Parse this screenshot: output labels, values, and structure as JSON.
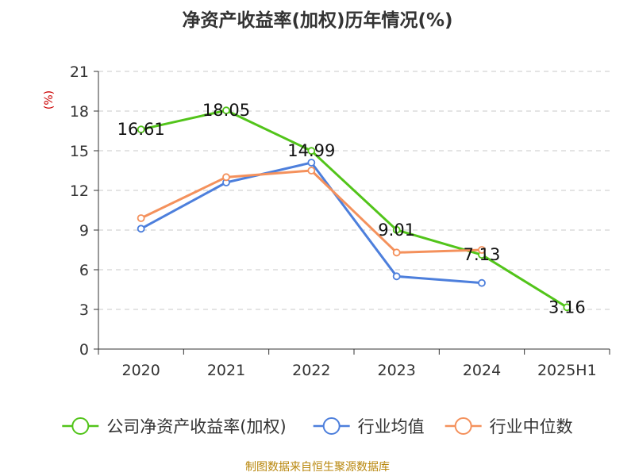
{
  "chart_data": {
    "type": "line",
    "title": "净资产收益率(加权)历年情况(%)",
    "ylabel": "(%)",
    "xlabel": "",
    "categories": [
      "2020",
      "2021",
      "2022",
      "2023",
      "2024",
      "2025H1"
    ],
    "ylim": [
      0,
      21
    ],
    "yticks": [
      0,
      3,
      6,
      9,
      12,
      15,
      18,
      21
    ],
    "grid": true,
    "legend_position": "bottom",
    "series": [
      {
        "name": "公司净资产收益率(加权)",
        "color": "#52c41a",
        "values": [
          16.61,
          18.05,
          14.99,
          9.01,
          7.13,
          3.16
        ],
        "labels": [
          "16.61",
          "18.05",
          "14.99",
          "9.01",
          "7.13",
          "3.16"
        ]
      },
      {
        "name": "行业均值",
        "color": "#4d7fdc",
        "values": [
          9.1,
          12.6,
          14.1,
          5.5,
          5.0,
          null
        ]
      },
      {
        "name": "行业中位数",
        "color": "#f4915c",
        "values": [
          9.9,
          13.0,
          13.5,
          7.3,
          7.5,
          null
        ]
      }
    ]
  },
  "footer": {
    "source": "制图数据来自恒生聚源数据库"
  }
}
